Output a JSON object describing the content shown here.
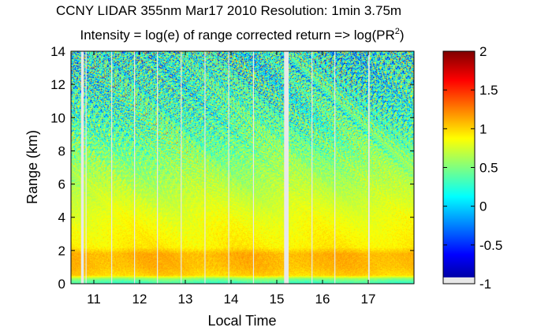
{
  "chart_data": {
    "type": "heatmap",
    "title": "CCNY LIDAR 355nm Mar17 2010 Resolution: 1min 3.75m",
    "subtitle": {
      "prefix": "Intensity = log(e) of range corrected return => log(PR",
      "superscript": "2",
      "suffix": ")"
    },
    "xlabel": "Local Time",
    "ylabel": "Range (km)",
    "xlim": [
      10.5,
      18.0
    ],
    "ylim": [
      0,
      14
    ],
    "x_ticks": [
      11,
      12,
      13,
      14,
      15,
      16,
      17
    ],
    "y_ticks": [
      0,
      2,
      4,
      6,
      8,
      10,
      12,
      14
    ],
    "grid": false,
    "colormap": "jet",
    "color_range": [
      -1,
      2
    ],
    "colorbar_ticks": [
      "2",
      "1.5",
      "1",
      "0.5",
      "0",
      "-0.5",
      "-1"
    ],
    "colorbar_tick_values": [
      2,
      1.5,
      1,
      0.5,
      0,
      -0.5,
      -1
    ],
    "missing_data_color": "#e8e8e8",
    "data_gaps_local_time": [
      {
        "start": 10.72,
        "end": 10.78
      },
      {
        "start": 10.82,
        "end": 10.84
      },
      {
        "start": 11.38,
        "end": 11.4
      },
      {
        "start": 11.88,
        "end": 11.9
      },
      {
        "start": 12.38,
        "end": 12.4
      },
      {
        "start": 12.9,
        "end": 12.92
      },
      {
        "start": 13.42,
        "end": 13.44
      },
      {
        "start": 13.94,
        "end": 13.96
      },
      {
        "start": 14.48,
        "end": 14.5
      },
      {
        "start": 15.16,
        "end": 15.26
      },
      {
        "start": 15.76,
        "end": 15.78
      },
      {
        "start": 16.26,
        "end": 16.28
      },
      {
        "start": 17.0,
        "end": 17.03
      }
    ],
    "range_profile_km": [
      {
        "range": 0.1,
        "value": 0.35
      },
      {
        "range": 0.3,
        "value": 0.55
      },
      {
        "range": 0.5,
        "value": 1.0
      },
      {
        "range": 1.0,
        "value": 1.08
      },
      {
        "range": 1.8,
        "value": 1.1
      },
      {
        "range": 2.2,
        "value": 0.92
      },
      {
        "range": 3.0,
        "value": 0.88
      },
      {
        "range": 4.0,
        "value": 0.82
      },
      {
        "range": 5.0,
        "value": 0.74
      },
      {
        "range": 6.0,
        "value": 0.66
      },
      {
        "range": 7.0,
        "value": 0.58
      },
      {
        "range": 8.0,
        "value": 0.5
      },
      {
        "range": 10.0,
        "value": 0.35
      },
      {
        "range": 12.0,
        "value": 0.28
      },
      {
        "range": 14.0,
        "value": 0.22
      }
    ],
    "noise_spread_by_range_km": [
      {
        "range": 0.0,
        "spread": 0.05
      },
      {
        "range": 5.0,
        "spread": 0.08
      },
      {
        "range": 7.0,
        "spread": 0.22
      },
      {
        "range": 9.0,
        "spread": 0.45
      },
      {
        "range": 12.0,
        "spread": 0.65
      },
      {
        "range": 14.0,
        "spread": 0.75
      }
    ]
  }
}
